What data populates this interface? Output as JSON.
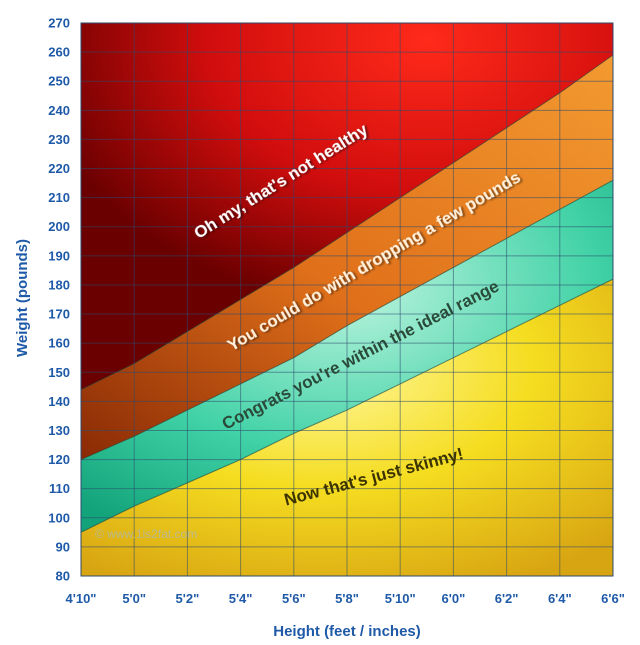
{
  "chart_data": {
    "type": "area",
    "xlabel": "Height (feet / inches)",
    "ylabel": "Weight (pounds)",
    "x_ticks": [
      "4'10\"",
      "5'0\"",
      "5'2\"",
      "5'4\"",
      "5'6\"",
      "5'8\"",
      "5'10\"",
      "6'0\"",
      "6'2\"",
      "6'4\"",
      "6'6\""
    ],
    "x_inches": [
      58,
      60,
      62,
      64,
      66,
      68,
      70,
      72,
      74,
      76,
      78
    ],
    "ylim": [
      80,
      270
    ],
    "y_ticks": [
      80,
      90,
      100,
      110,
      120,
      130,
      140,
      150,
      160,
      170,
      180,
      190,
      200,
      210,
      220,
      230,
      240,
      250,
      260,
      270
    ],
    "grid": true,
    "boundaries": [
      {
        "values": [
          95,
          104,
          112,
          120,
          129,
          137,
          146,
          155,
          164,
          173,
          182
        ]
      },
      {
        "values": [
          120,
          128,
          137,
          146,
          155,
          166,
          176,
          186,
          196,
          206,
          216
        ]
      },
      {
        "values": [
          144,
          153,
          164,
          175,
          186,
          198,
          210,
          222,
          234,
          246,
          259
        ]
      }
    ],
    "zones": [
      {
        "label": "Now that's just skinny!",
        "color": "#f2d91a",
        "text_color": "#3b3300"
      },
      {
        "label": "Congrats you're within the ideal range",
        "color": "#3fd1a5",
        "text_color": "#2a4a3a"
      },
      {
        "label": "You could do with dropping a few pounds",
        "color": "#e8781a",
        "text_color": "#fff1dc"
      },
      {
        "label": "Oh my, that's not healthy",
        "color": "#e01515",
        "text_color": "#ffffff"
      }
    ],
    "watermark": "© www.1is2fat.com"
  }
}
